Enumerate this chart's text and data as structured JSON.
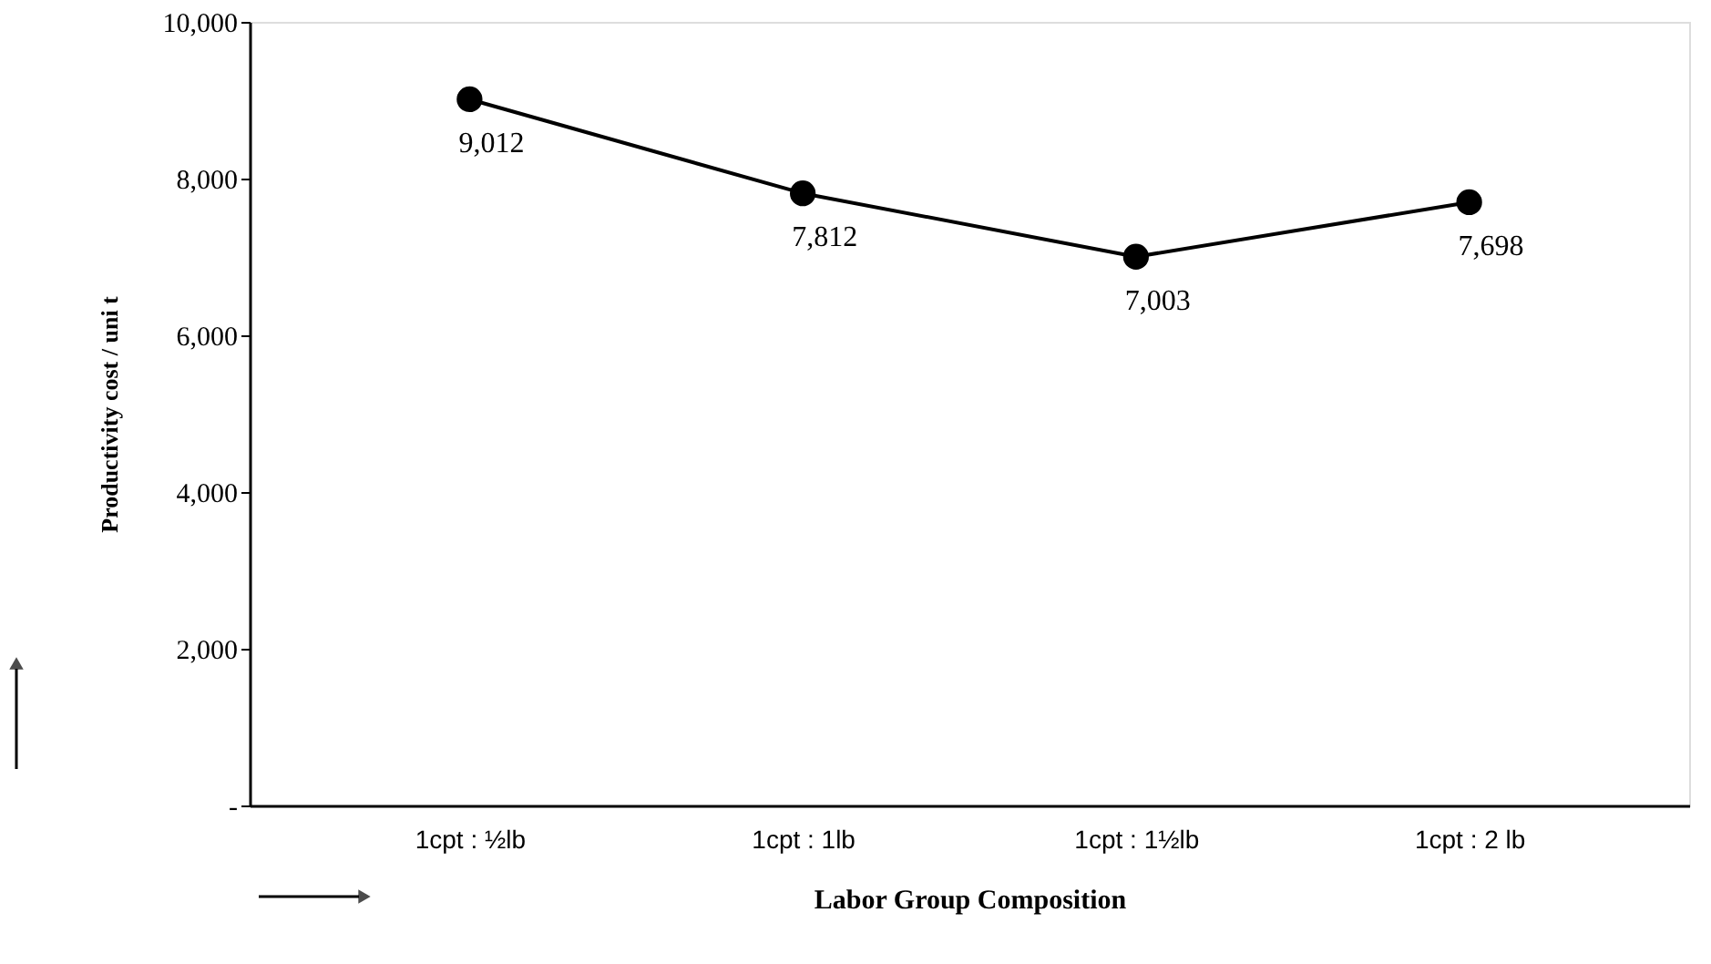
{
  "chart_data": {
    "type": "line",
    "xlabel": "Labor Group Composition",
    "ylabel": "Productivity cost / uni t",
    "categories": [
      "1cpt : ½lb",
      "1cpt : 1lb",
      "1cpt : 1½lb",
      "1cpt : 2 lb"
    ],
    "series": [
      {
        "color": "#000000",
        "values": [
          9012,
          7812,
          7003,
          7698
        ],
        "value_labels": [
          "9,012",
          "7,812",
          "7,003",
          "7,698"
        ]
      }
    ],
    "ylim": [
      0,
      10000
    ],
    "yticks": [
      {
        "value": 0,
        "label": "-"
      },
      {
        "value": 2000,
        "label": "2,000"
      },
      {
        "value": 4000,
        "label": "4,000"
      },
      {
        "value": 6000,
        "label": "6,000"
      },
      {
        "value": 8000,
        "label": "8,000"
      },
      {
        "value": 10000,
        "label": "10,000"
      }
    ],
    "grid": false,
    "marker": "circle",
    "line_style": "solid"
  }
}
